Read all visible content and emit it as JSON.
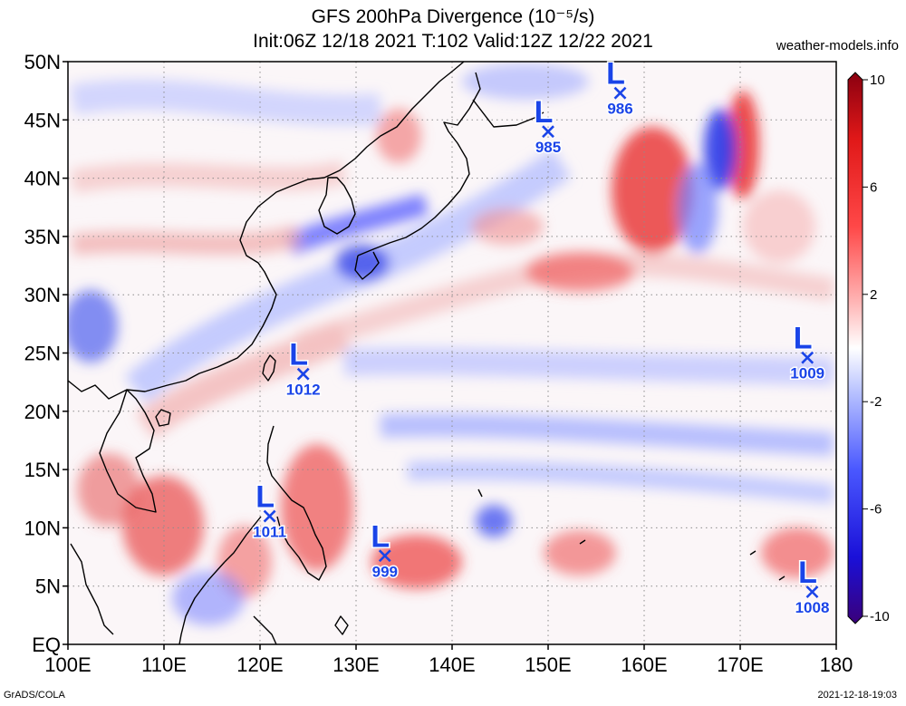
{
  "title": {
    "line1": "GFS 200hPa Divergence (10⁻⁵/s)",
    "line2": "Init:06Z 12/18 2021 T:102 Valid:12Z 12/22 2021"
  },
  "site": "weather-models.info",
  "footer": {
    "left": "GrADS/COLA",
    "right": "2021-12-18-19:03"
  },
  "map": {
    "lon_range": [
      100,
      180
    ],
    "lat_range": [
      0,
      50
    ],
    "lon_ticks": [
      "100E",
      "110E",
      "120E",
      "130E",
      "140E",
      "150E",
      "160E",
      "170E",
      "180"
    ],
    "lat_ticks": [
      "EQ",
      "5N",
      "10N",
      "15N",
      "20N",
      "25N",
      "30N",
      "35N",
      "40N",
      "45N",
      "50N"
    ],
    "colors": {
      "low_marker": "#1a44e8"
    }
  },
  "lows": [
    {
      "lon": 121.0,
      "lat": 11.0,
      "pressure": "1011"
    },
    {
      "lon": 124.5,
      "lat": 23.2,
      "pressure": "1012"
    },
    {
      "lon": 133.0,
      "lat": 7.6,
      "pressure": "999"
    },
    {
      "lon": 150.0,
      "lat": 44.0,
      "pressure": "985"
    },
    {
      "lon": 157.5,
      "lat": 47.3,
      "pressure": "986"
    },
    {
      "lon": 177.0,
      "lat": 24.6,
      "pressure": "1009"
    },
    {
      "lon": 177.5,
      "lat": 4.5,
      "pressure": "1008"
    }
  ],
  "colorbar": {
    "ticks": [
      "10",
      "6",
      "2",
      "-2",
      "-6",
      "-10"
    ],
    "colors": [
      "#3a007a",
      "#1a10d8",
      "#4a58ff",
      "#a8b4ff",
      "#ffffff",
      "#ffb0b0",
      "#ff4848",
      "#e01818",
      "#8a0010"
    ]
  }
}
